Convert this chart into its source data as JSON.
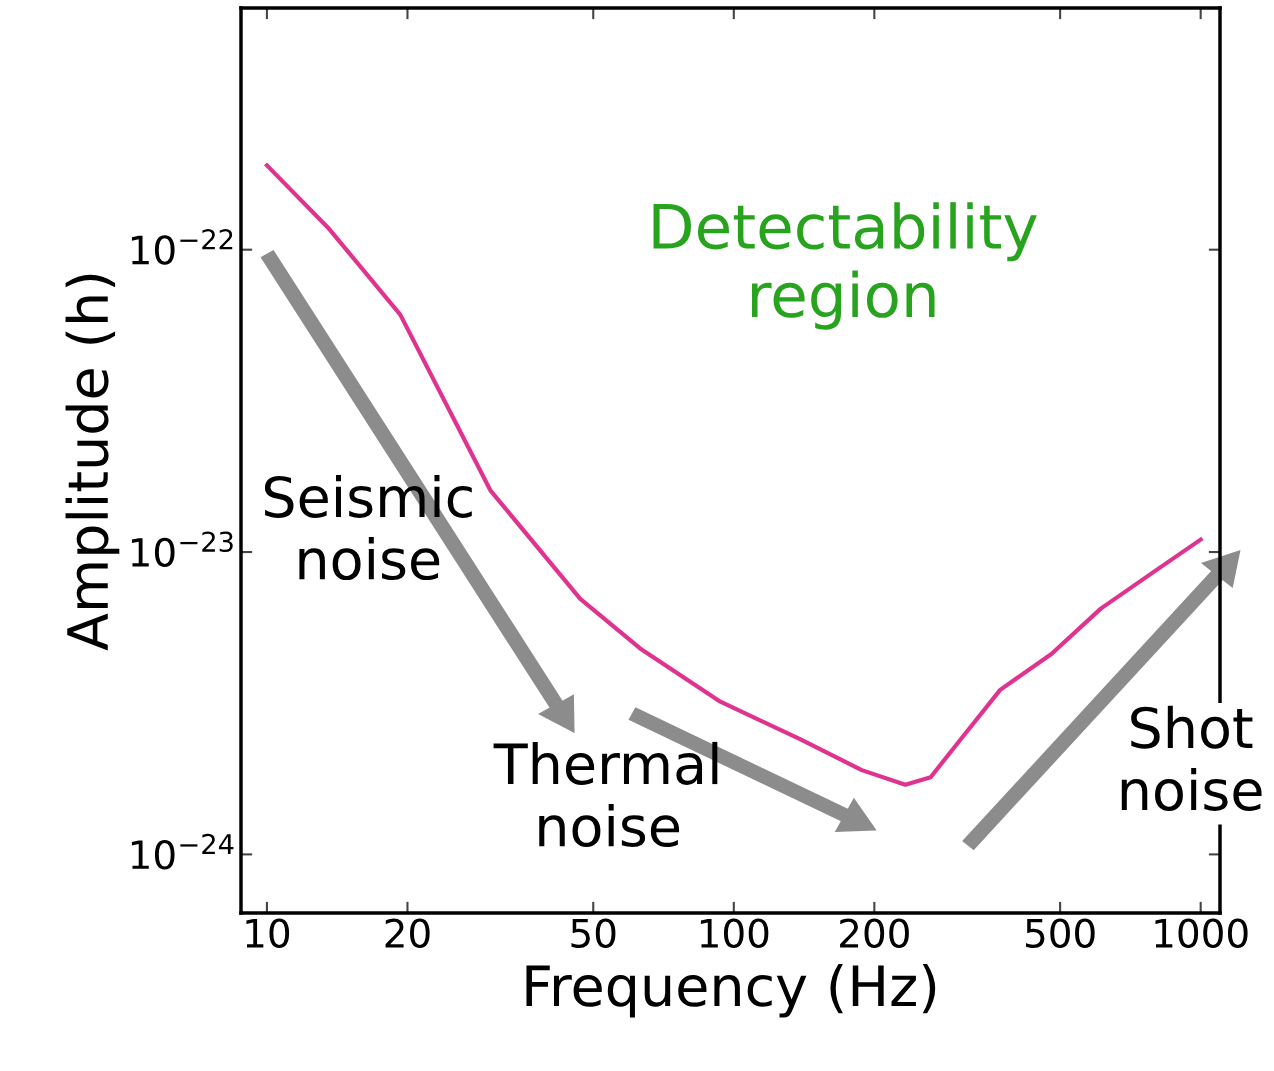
{
  "chart_data": {
    "type": "line",
    "xlabel": "Frequency (Hz)",
    "ylabel": "Amplitude (h)",
    "log": "xy",
    "x": [
      10,
      13.6,
      19.3,
      30.1,
      46.9,
      63,
      93.6,
      139,
      188,
      233,
      264,
      306,
      372,
      479,
      611,
      785,
      1000
    ],
    "series": [
      {
        "color": "#e0338f",
        "values": [
          1.9e-22,
          1.17e-22,
          6.1e-23,
          1.6e-23,
          7e-24,
          4.8e-24,
          3.2e-24,
          2.4e-24,
          1.9e-24,
          1.7e-24,
          1.8e-24,
          2.4e-24,
          3.5e-24,
          4.6e-24,
          6.5e-24,
          8.5e-24,
          1.1e-23
        ]
      }
    ],
    "xlim": [
      8.8,
      1100
    ],
    "ylim": [
      6.4e-25,
      6.3e-22
    ],
    "xticks": [
      10,
      20,
      50,
      100,
      200,
      500,
      1000
    ],
    "yticks": [
      {
        "value": 1e-24,
        "label": "10$^{−24}$"
      },
      {
        "value": 1e-23,
        "label": "10$^{−23}$"
      },
      {
        "value": 1e-22,
        "label": "10$^{−22}$"
      }
    ],
    "annotations": [
      "Detectability\nregion",
      "Seismic\nnoise",
      "Thermal\nnoise",
      "Shot\nnoise"
    ],
    "grid": false,
    "marker": "none",
    "line_style": "solid"
  }
}
